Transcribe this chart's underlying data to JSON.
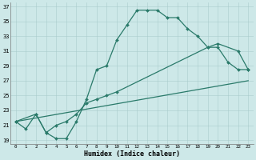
{
  "xlabel": "Humidex (Indice chaleur)",
  "xlim": [
    -0.5,
    23.5
  ],
  "ylim": [
    18.5,
    37.5
  ],
  "xticks": [
    0,
    1,
    2,
    3,
    4,
    5,
    6,
    7,
    8,
    9,
    10,
    11,
    12,
    13,
    14,
    15,
    16,
    17,
    18,
    19,
    20,
    21,
    22,
    23
  ],
  "yticks": [
    19,
    21,
    23,
    25,
    27,
    29,
    31,
    33,
    35,
    37
  ],
  "bg_color": "#cde8e8",
  "line_color": "#2a7a6a",
  "curve1_x": [
    0,
    1,
    2,
    3,
    4,
    5,
    6,
    7,
    8,
    9,
    10,
    11,
    12,
    13,
    14,
    15,
    16,
    17,
    18,
    19,
    20,
    21,
    22,
    23
  ],
  "curve1_y": [
    21.5,
    20.5,
    22.5,
    20.0,
    19.2,
    19.2,
    21.5,
    24.5,
    28.5,
    29.0,
    32.5,
    34.5,
    36.5,
    36.5,
    36.5,
    35.5,
    35.5,
    34.0,
    33.0,
    31.5,
    31.5,
    29.5,
    28.5,
    28.5
  ],
  "curve2_x": [
    0,
    2,
    3,
    4,
    5,
    6,
    7,
    8,
    9,
    10,
    19,
    20,
    22,
    23
  ],
  "curve2_y": [
    21.5,
    22.5,
    20.0,
    21.0,
    21.5,
    22.5,
    24.0,
    24.5,
    25.0,
    25.5,
    31.5,
    32.0,
    31.0,
    28.5
  ],
  "curve3_x": [
    0,
    23
  ],
  "curve3_y": [
    21.5,
    27.0
  ]
}
